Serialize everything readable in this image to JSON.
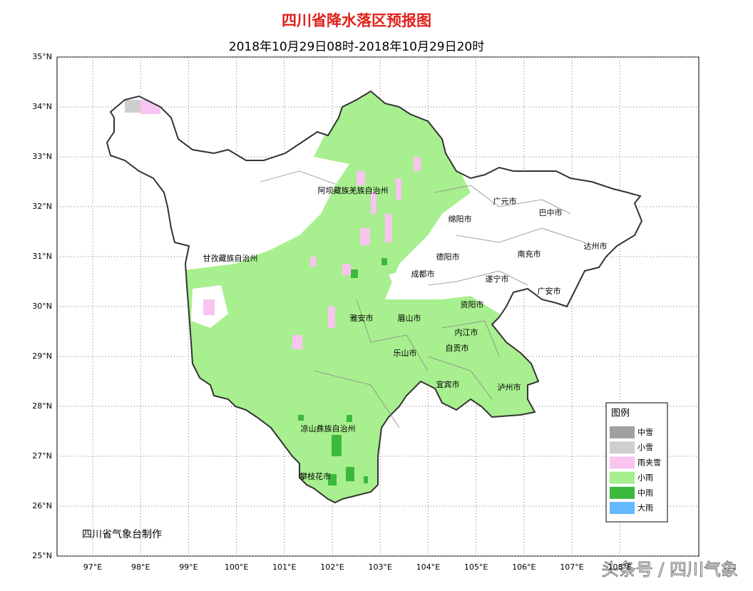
{
  "header": {
    "title": "四川省降水落区预报图",
    "subtitle": "2018年10月29日08时-2018年10月29日20时"
  },
  "axes": {
    "lat_ticks": [
      "35°N",
      "34°N",
      "33°N",
      "32°N",
      "31°N",
      "30°N",
      "29°N",
      "28°N",
      "27°N",
      "26°N",
      "25°N"
    ],
    "lon_ticks": [
      "97°E",
      "98°E",
      "99°E",
      "100°E",
      "101°E",
      "102°E",
      "103°E",
      "104°E",
      "105°E",
      "106°E",
      "107°E",
      "108°E"
    ]
  },
  "cities": [
    {
      "label": "阿坝藏族羌族自治州"
    },
    {
      "label": "广元市"
    },
    {
      "label": "巴中市"
    },
    {
      "label": "绵阳市"
    },
    {
      "label": "达州市"
    },
    {
      "label": "甘孜藏族自治州"
    },
    {
      "label": "德阳市"
    },
    {
      "label": "南充市"
    },
    {
      "label": "成都市"
    },
    {
      "label": "遂宁市"
    },
    {
      "label": "广安市"
    },
    {
      "label": "资阳市"
    },
    {
      "label": "雅安市"
    },
    {
      "label": "眉山市"
    },
    {
      "label": "内江市"
    },
    {
      "label": "自贡市"
    },
    {
      "label": "乐山市"
    },
    {
      "label": "宜宾市"
    },
    {
      "label": "泸州市"
    },
    {
      "label": "凉山彝族自治州"
    },
    {
      "label": "攀枝花市"
    }
  ],
  "legend": {
    "title": "图例",
    "items": [
      {
        "label": "中雪",
        "color": "#a0a0a0"
      },
      {
        "label": "小雪",
        "color": "#cfcfcf"
      },
      {
        "label": "雨夹雪",
        "color": "#f9c4ef"
      },
      {
        "label": "小雨",
        "color": "#a8ef8f"
      },
      {
        "label": "中雨",
        "color": "#3cb93c"
      },
      {
        "label": "大雨",
        "color": "#66b8ff"
      }
    ]
  },
  "credit": "四川省气象台制作",
  "watermark": "头条号 / 四川气象"
}
